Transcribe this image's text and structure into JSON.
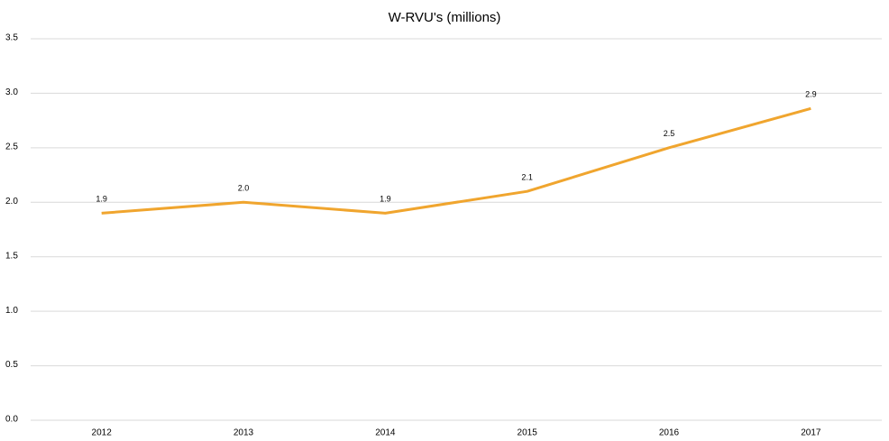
{
  "chart_data": {
    "type": "line",
    "title": "W-RVU's (millions)",
    "categories": [
      "2012",
      "2013",
      "2014",
      "2015",
      "2016",
      "2017"
    ],
    "series": [
      {
        "name": "W-RVU's",
        "color": "#f0a52e",
        "values": [
          1.9,
          2.0,
          1.9,
          2.1,
          2.5,
          2.86
        ],
        "value_labels": [
          "1.9",
          "2.0",
          "1.9",
          "2.1",
          "2.5",
          "2.9"
        ]
      }
    ],
    "ylim": [
      0,
      3.5
    ],
    "yticks": [
      {
        "value": 0,
        "label": "0.0"
      },
      0.5,
      {
        "value": 1,
        "label": "1.0"
      },
      1.5,
      {
        "value": 2,
        "label": "2.0"
      },
      2.5,
      {
        "value": 3,
        "label": "3.0"
      },
      3.5
    ],
    "grid": true
  }
}
